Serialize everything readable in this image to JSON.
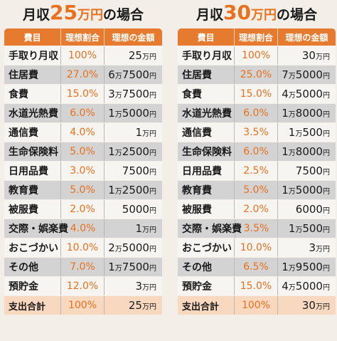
{
  "tables": [
    {
      "title": {
        "prefix": "月収",
        "amount": "25",
        "unit": "万円",
        "suffix": "の場合"
      },
      "headers": [
        "費目",
        "理想割合",
        "理想の金額"
      ],
      "rows": [
        {
          "item": "手取り月収",
          "ratio": "100%",
          "amount": [
            "25",
            "万円"
          ]
        },
        {
          "item": "住居費",
          "ratio": "27.0%",
          "amount": [
            "6",
            "万",
            "7500",
            "円"
          ]
        },
        {
          "item": "食費",
          "ratio": "15.0%",
          "amount": [
            "3",
            "万",
            "7500",
            "円"
          ]
        },
        {
          "item": "水道光熱費",
          "ratio": "6.0%",
          "amount": [
            "1",
            "万",
            "5000",
            "円"
          ]
        },
        {
          "item": "通信費",
          "ratio": "4.0%",
          "amount": [
            "1",
            "万円"
          ]
        },
        {
          "item": "生命保険料",
          "ratio": "5.0%",
          "amount": [
            "1",
            "万",
            "2500",
            "円"
          ]
        },
        {
          "item": "日用品費",
          "ratio": "3.0%",
          "amount": [
            "7500",
            "円"
          ]
        },
        {
          "item": "教育費",
          "ratio": "5.0%",
          "amount": [
            "1",
            "万",
            "2500",
            "円"
          ]
        },
        {
          "item": "被服費",
          "ratio": "2.0%",
          "amount": [
            "5000",
            "円"
          ]
        },
        {
          "item": "交際・娯楽費",
          "ratio": "4.0%",
          "amount": [
            "1",
            "万円"
          ]
        },
        {
          "item": "おこづかい",
          "ratio": "10.0%",
          "amount": [
            "2",
            "万",
            "5000",
            "円"
          ]
        },
        {
          "item": "その他",
          "ratio": "7.0%",
          "amount": [
            "1",
            "万",
            "7500",
            "円"
          ]
        },
        {
          "item": "預貯金",
          "ratio": "12.0%",
          "amount": [
            "3",
            "万円"
          ]
        },
        {
          "item": "支出合計",
          "ratio": "100%",
          "amount": [
            "25",
            "万円"
          ]
        }
      ]
    },
    {
      "title": {
        "prefix": "月収",
        "amount": "30",
        "unit": "万円",
        "suffix": "の場合"
      },
      "headers": [
        "費目",
        "理想割合",
        "理想の金額"
      ],
      "rows": [
        {
          "item": "手取り月収",
          "ratio": "100%",
          "amount": [
            "30",
            "万円"
          ]
        },
        {
          "item": "住居費",
          "ratio": "25.0%",
          "amount": [
            "7",
            "万",
            "5000",
            "円"
          ]
        },
        {
          "item": "食費",
          "ratio": "15.0%",
          "amount": [
            "4",
            "万",
            "5000",
            "円"
          ]
        },
        {
          "item": "水道光熱費",
          "ratio": "6.0%",
          "amount": [
            "1",
            "万",
            "8000",
            "円"
          ]
        },
        {
          "item": "通信費",
          "ratio": "3.5%",
          "amount": [
            "1",
            "万",
            "500",
            "円"
          ]
        },
        {
          "item": "生命保険料",
          "ratio": "6.0%",
          "amount": [
            "1",
            "万",
            "8000",
            "円"
          ]
        },
        {
          "item": "日用品費",
          "ratio": "2.5%",
          "amount": [
            "7500",
            "円"
          ]
        },
        {
          "item": "教育費",
          "ratio": "5.0%",
          "amount": [
            "1",
            "万",
            "5000",
            "円"
          ]
        },
        {
          "item": "被服費",
          "ratio": "2.0%",
          "amount": [
            "6000",
            "円"
          ]
        },
        {
          "item": "交際・娯楽費",
          "ratio": "3.5%",
          "amount": [
            "1",
            "万",
            "500",
            "円"
          ]
        },
        {
          "item": "おこづかい",
          "ratio": "10.0%",
          "amount": [
            "3",
            "万円"
          ]
        },
        {
          "item": "その他",
          "ratio": "6.5%",
          "amount": [
            "1",
            "万",
            "9500",
            "円"
          ]
        },
        {
          "item": "預貯金",
          "ratio": "15.0%",
          "amount": [
            "4",
            "万",
            "5000",
            "円"
          ]
        },
        {
          "item": "支出合計",
          "ratio": "100%",
          "amount": [
            "30",
            "万円"
          ]
        }
      ]
    }
  ]
}
